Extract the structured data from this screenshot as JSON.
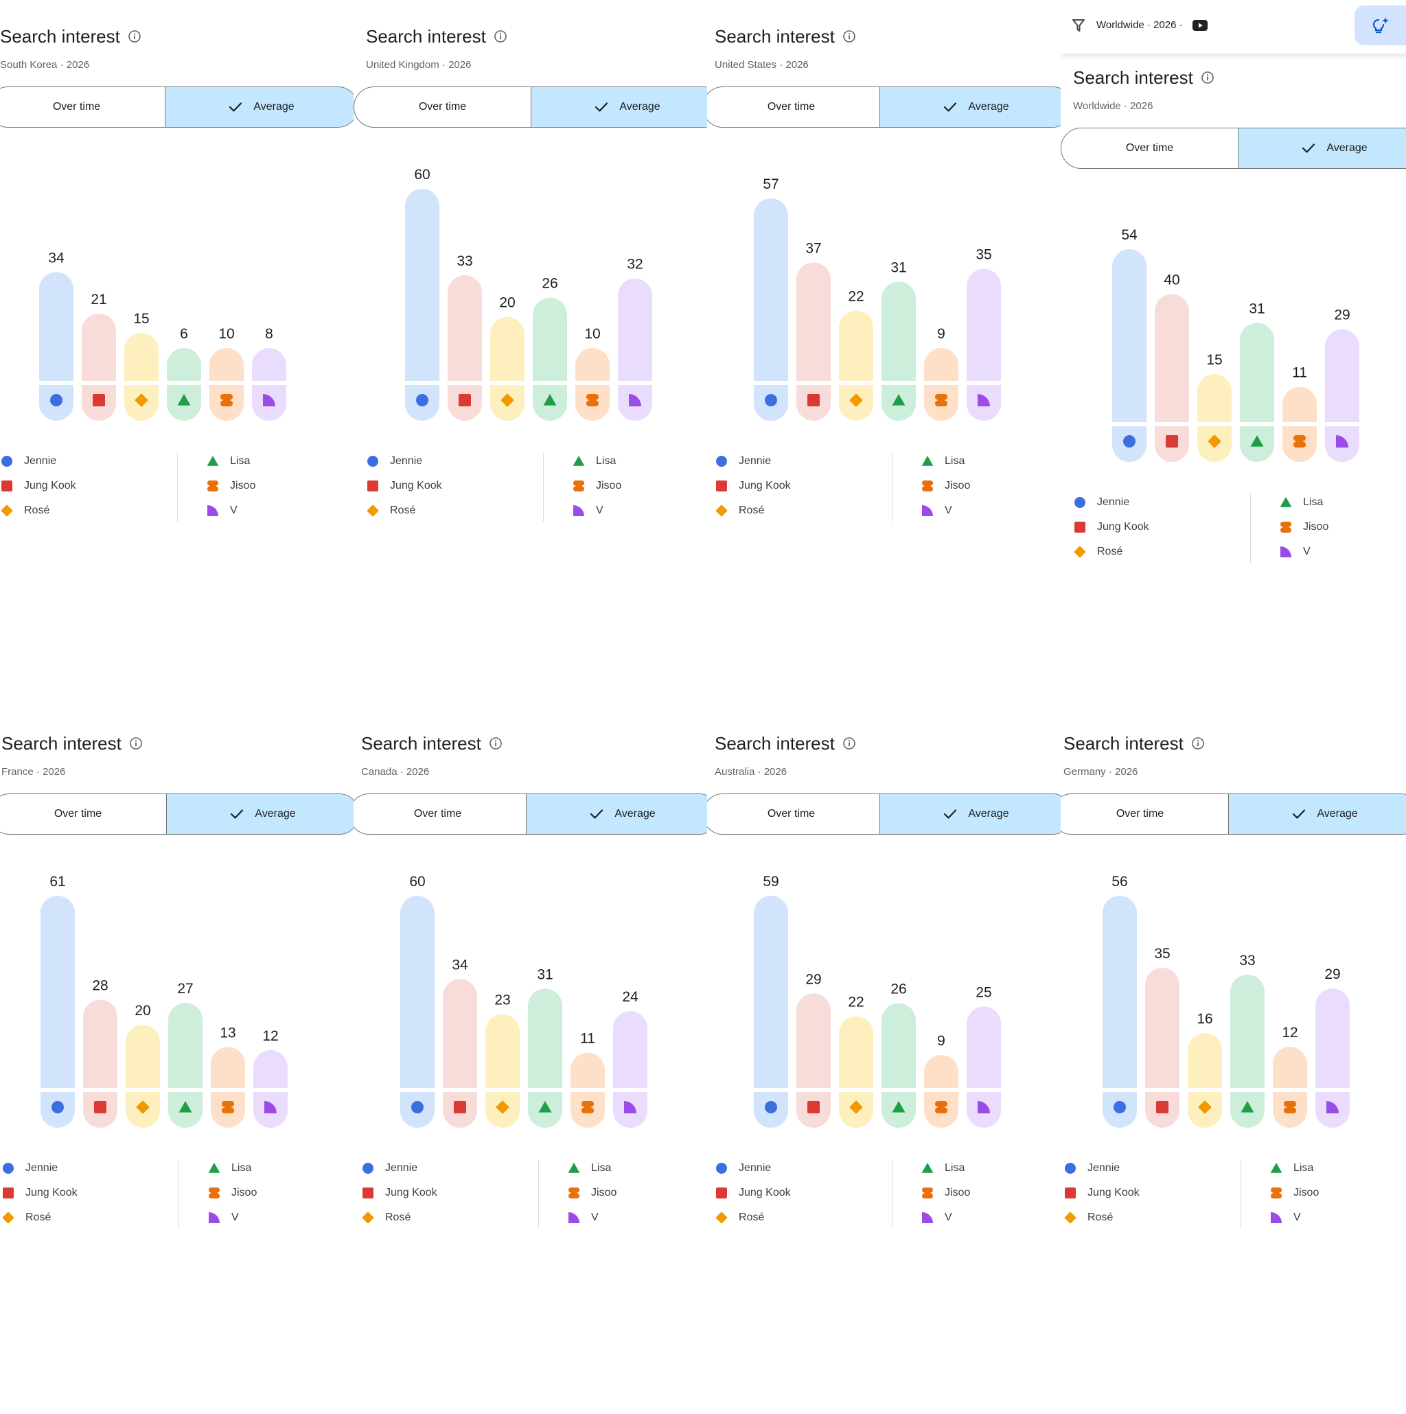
{
  "panels": [
    {
      "title": "Search interest",
      "region": "South Korea",
      "year": "2026",
      "toggle": {
        "over_time": "Over time",
        "average": "Average"
      },
      "chart_data": {
        "type": "bar",
        "categories": [
          "Jennie",
          "Jung Kook",
          "Rosé",
          "Lisa",
          "Jisoo",
          "V"
        ],
        "values": [
          34,
          21,
          15,
          6,
          10,
          8
        ],
        "ylim": [
          0,
          60
        ]
      }
    },
    {
      "title": "Search interest",
      "region": "United Kingdom",
      "year": "2026",
      "toggle": {
        "over_time": "Over time",
        "average": "Average"
      },
      "chart_data": {
        "type": "bar",
        "categories": [
          "Jennie",
          "Jung Kook",
          "Rosé",
          "Lisa",
          "Jisoo",
          "V"
        ],
        "values": [
          60,
          33,
          20,
          26,
          10,
          32
        ],
        "ylim": [
          0,
          60
        ]
      }
    },
    {
      "title": "Search interest",
      "region": "United States",
      "year": "2026",
      "toggle": {
        "over_time": "Over time",
        "average": "Average"
      },
      "chart_data": {
        "type": "bar",
        "categories": [
          "Jennie",
          "Jung Kook",
          "Rosé",
          "Lisa",
          "Jisoo",
          "V"
        ],
        "values": [
          57,
          37,
          22,
          31,
          9,
          35
        ],
        "ylim": [
          0,
          60
        ]
      }
    },
    {
      "title": "Search interest",
      "region": "Worldwide",
      "year": "2026",
      "top_bar": {
        "filter_text": "Worldwide · 2026 ·"
      },
      "toggle": {
        "over_time": "Over time",
        "average": "Average"
      },
      "chart_data": {
        "type": "bar",
        "categories": [
          "Jennie",
          "Jung Kook",
          "Rosé",
          "Lisa",
          "Jisoo",
          "V"
        ],
        "values": [
          54,
          40,
          15,
          31,
          11,
          29
        ],
        "ylim": [
          0,
          60
        ]
      }
    },
    {
      "title": "Search interest",
      "region": "France",
      "year": "2026",
      "toggle": {
        "over_time": "Over time",
        "average": "Average"
      },
      "chart_data": {
        "type": "bar",
        "categories": [
          "Jennie",
          "Jung Kook",
          "Rosé",
          "Lisa",
          "Jisoo",
          "V"
        ],
        "values": [
          61,
          28,
          20,
          27,
          13,
          12
        ],
        "ylim": [
          0,
          61
        ]
      }
    },
    {
      "title": "Search interest",
      "region": "Canada",
      "year": "2026",
      "toggle": {
        "over_time": "Over time",
        "average": "Average"
      },
      "chart_data": {
        "type": "bar",
        "categories": [
          "Jennie",
          "Jung Kook",
          "Rosé",
          "Lisa",
          "Jisoo",
          "V"
        ],
        "values": [
          60,
          34,
          23,
          31,
          11,
          24
        ],
        "ylim": [
          0,
          60
        ]
      }
    },
    {
      "title": "Search interest",
      "region": "Australia",
      "year": "2026",
      "toggle": {
        "over_time": "Over time",
        "average": "Average"
      },
      "chart_data": {
        "type": "bar",
        "categories": [
          "Jennie",
          "Jung Kook",
          "Rosé",
          "Lisa",
          "Jisoo",
          "V"
        ],
        "values": [
          59,
          29,
          22,
          26,
          9,
          25
        ],
        "ylim": [
          0,
          59
        ]
      }
    },
    {
      "title": "Search interest",
      "region": "Germany",
      "year": "2026",
      "toggle": {
        "over_time": "Over time",
        "average": "Average"
      },
      "chart_data": {
        "type": "bar",
        "categories": [
          "Jennie",
          "Jung Kook",
          "Rosé",
          "Lisa",
          "Jisoo",
          "V"
        ],
        "values": [
          56,
          35,
          16,
          33,
          12,
          29
        ],
        "ylim": [
          0,
          56
        ]
      }
    }
  ],
  "series_style": [
    {
      "name": "Jennie",
      "icon": "circle-icon",
      "color": "#3b6fe0",
      "light": "#d2e3fc"
    },
    {
      "name": "Jung Kook",
      "icon": "square-icon",
      "color": "#db3a34",
      "light": "#f8dcd9"
    },
    {
      "name": "Rosé",
      "icon": "diamond-icon",
      "color": "#f29900",
      "light": "#fdf0be"
    },
    {
      "name": "Lisa",
      "icon": "triangle-icon",
      "color": "#1e9e46",
      "light": "#cdeeda"
    },
    {
      "name": "Jisoo",
      "icon": "flower-icon",
      "color": "#e8710a",
      "light": "#fedfc8"
    },
    {
      "name": "V",
      "icon": "quarter-icon",
      "color": "#9b4be8",
      "light": "#eadcfd"
    }
  ]
}
